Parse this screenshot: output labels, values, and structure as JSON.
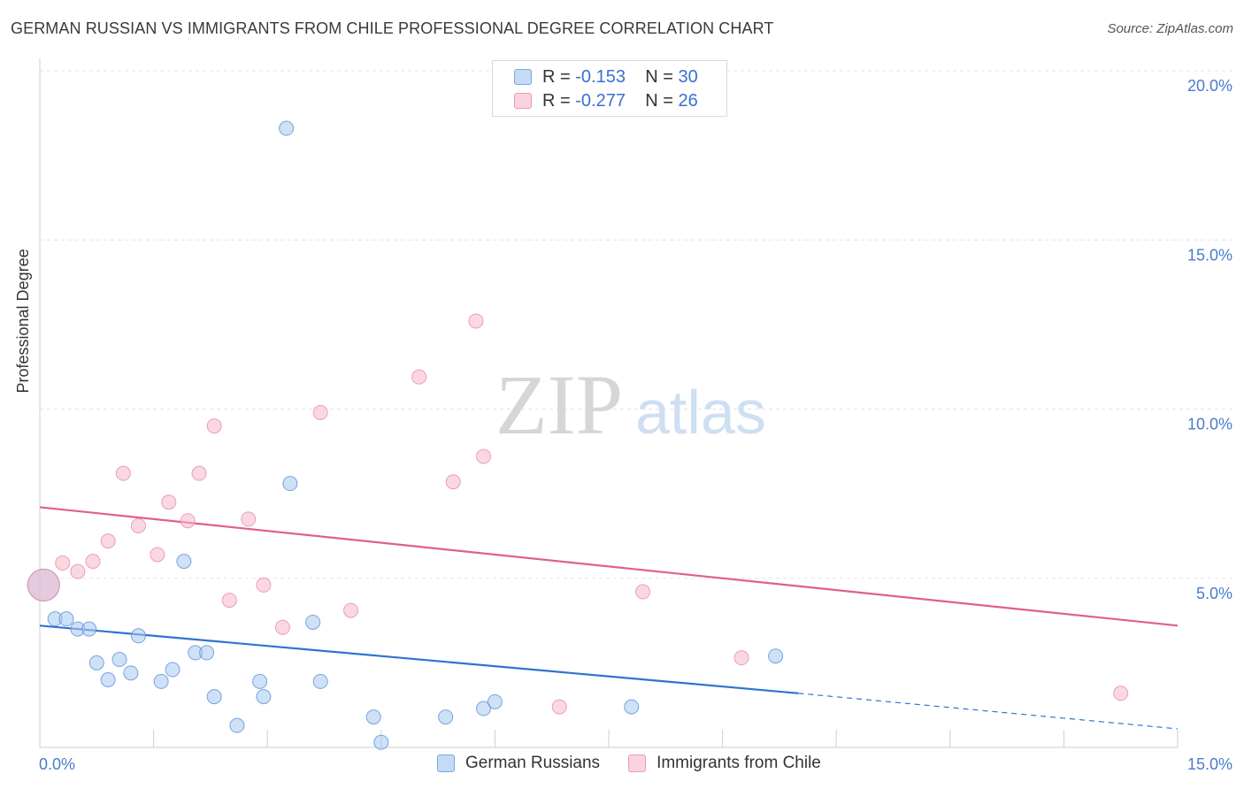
{
  "header": {
    "title": "GERMAN RUSSIAN VS IMMIGRANTS FROM CHILE PROFESSIONAL DEGREE CORRELATION CHART",
    "source": "Source: ZipAtlas.com"
  },
  "watermark": {
    "zip": "ZIP",
    "atlas": "atlas"
  },
  "legend": {
    "rows": [
      {
        "r_label": "R = ",
        "r_value": "-0.153",
        "n_label": "N = ",
        "n_value": "30",
        "color": "#a8c8f0"
      },
      {
        "r_label": "R = ",
        "r_value": "-0.277",
        "n_label": "N = ",
        "n_value": "26",
        "color": "#f5b8c8"
      }
    ]
  },
  "bottom_legend": {
    "items": [
      {
        "label": "German Russians",
        "color": "#a8c8f0"
      },
      {
        "label": "Immigrants from Chile",
        "color": "#f5b8c8"
      }
    ]
  },
  "chart_data": {
    "type": "scatter",
    "title": "GERMAN RUSSIAN VS IMMIGRANTS FROM CHILE PROFESSIONAL DEGREE CORRELATION CHART",
    "xlabel": "",
    "ylabel": "Professional Degree",
    "xlim": [
      0,
      15
    ],
    "ylim": [
      0,
      20
    ],
    "x_tick_labels": [
      "0.0%",
      "15.0%"
    ],
    "y_ticks": [
      5,
      10,
      15,
      20
    ],
    "y_tick_labels": [
      "5.0%",
      "10.0%",
      "15.0%",
      "20.0%"
    ],
    "grid": true,
    "series": [
      {
        "name": "German Russians",
        "color": "#a8c8f0",
        "stroke": "#5a90d8",
        "trend_color": "#2f74d0",
        "trend": {
          "x0": 0,
          "y0": 3.6,
          "x1": 10.0,
          "y1": 1.6,
          "dashed_to_x": 15,
          "dashed_to_y": 0.55
        },
        "points": [
          {
            "x": 0.05,
            "y": 4.8,
            "big": true
          },
          {
            "x": 0.2,
            "y": 3.8
          },
          {
            "x": 0.35,
            "y": 3.8
          },
          {
            "x": 0.5,
            "y": 3.5
          },
          {
            "x": 0.65,
            "y": 3.5
          },
          {
            "x": 1.3,
            "y": 3.3
          },
          {
            "x": 0.75,
            "y": 2.5
          },
          {
            "x": 1.05,
            "y": 2.6
          },
          {
            "x": 0.9,
            "y": 2.0
          },
          {
            "x": 1.2,
            "y": 2.2
          },
          {
            "x": 1.6,
            "y": 1.95
          },
          {
            "x": 1.75,
            "y": 2.3
          },
          {
            "x": 2.05,
            "y": 2.8
          },
          {
            "x": 2.2,
            "y": 2.8
          },
          {
            "x": 1.9,
            "y": 5.5
          },
          {
            "x": 2.3,
            "y": 1.5
          },
          {
            "x": 2.6,
            "y": 0.65
          },
          {
            "x": 2.9,
            "y": 1.95
          },
          {
            "x": 2.95,
            "y": 1.5
          },
          {
            "x": 3.3,
            "y": 7.8
          },
          {
            "x": 3.25,
            "y": 18.3
          },
          {
            "x": 3.6,
            "y": 3.7
          },
          {
            "x": 3.7,
            "y": 1.95
          },
          {
            "x": 4.4,
            "y": 0.9
          },
          {
            "x": 4.5,
            "y": 0.15
          },
          {
            "x": 5.35,
            "y": 0.9
          },
          {
            "x": 5.85,
            "y": 1.15
          },
          {
            "x": 6.0,
            "y": 1.35
          },
          {
            "x": 7.8,
            "y": 1.2
          },
          {
            "x": 9.7,
            "y": 2.7
          }
        ]
      },
      {
        "name": "Immigrants from Chile",
        "color": "#f5b8c8",
        "stroke": "#e88aa5",
        "trend_color": "#e05f8a",
        "trend": {
          "x0": 0,
          "y0": 7.1,
          "x1": 15,
          "y1": 3.6
        },
        "points": [
          {
            "x": 0.05,
            "y": 4.8,
            "big": true
          },
          {
            "x": 0.3,
            "y": 5.45
          },
          {
            "x": 0.5,
            "y": 5.2
          },
          {
            "x": 0.7,
            "y": 5.5
          },
          {
            "x": 0.9,
            "y": 6.1
          },
          {
            "x": 1.1,
            "y": 8.1
          },
          {
            "x": 1.3,
            "y": 6.55
          },
          {
            "x": 1.55,
            "y": 5.7
          },
          {
            "x": 1.7,
            "y": 7.25
          },
          {
            "x": 1.95,
            "y": 6.7
          },
          {
            "x": 2.1,
            "y": 8.1
          },
          {
            "x": 2.3,
            "y": 9.5
          },
          {
            "x": 2.5,
            "y": 4.35
          },
          {
            "x": 2.75,
            "y": 6.75
          },
          {
            "x": 2.95,
            "y": 4.8
          },
          {
            "x": 3.2,
            "y": 3.55
          },
          {
            "x": 3.7,
            "y": 9.9
          },
          {
            "x": 4.1,
            "y": 4.05
          },
          {
            "x": 5.0,
            "y": 10.95
          },
          {
            "x": 5.45,
            "y": 7.85
          },
          {
            "x": 5.75,
            "y": 12.6
          },
          {
            "x": 5.85,
            "y": 8.6
          },
          {
            "x": 6.85,
            "y": 1.2
          },
          {
            "x": 7.95,
            "y": 4.6
          },
          {
            "x": 9.25,
            "y": 2.65
          },
          {
            "x": 14.25,
            "y": 1.6
          }
        ]
      }
    ]
  }
}
